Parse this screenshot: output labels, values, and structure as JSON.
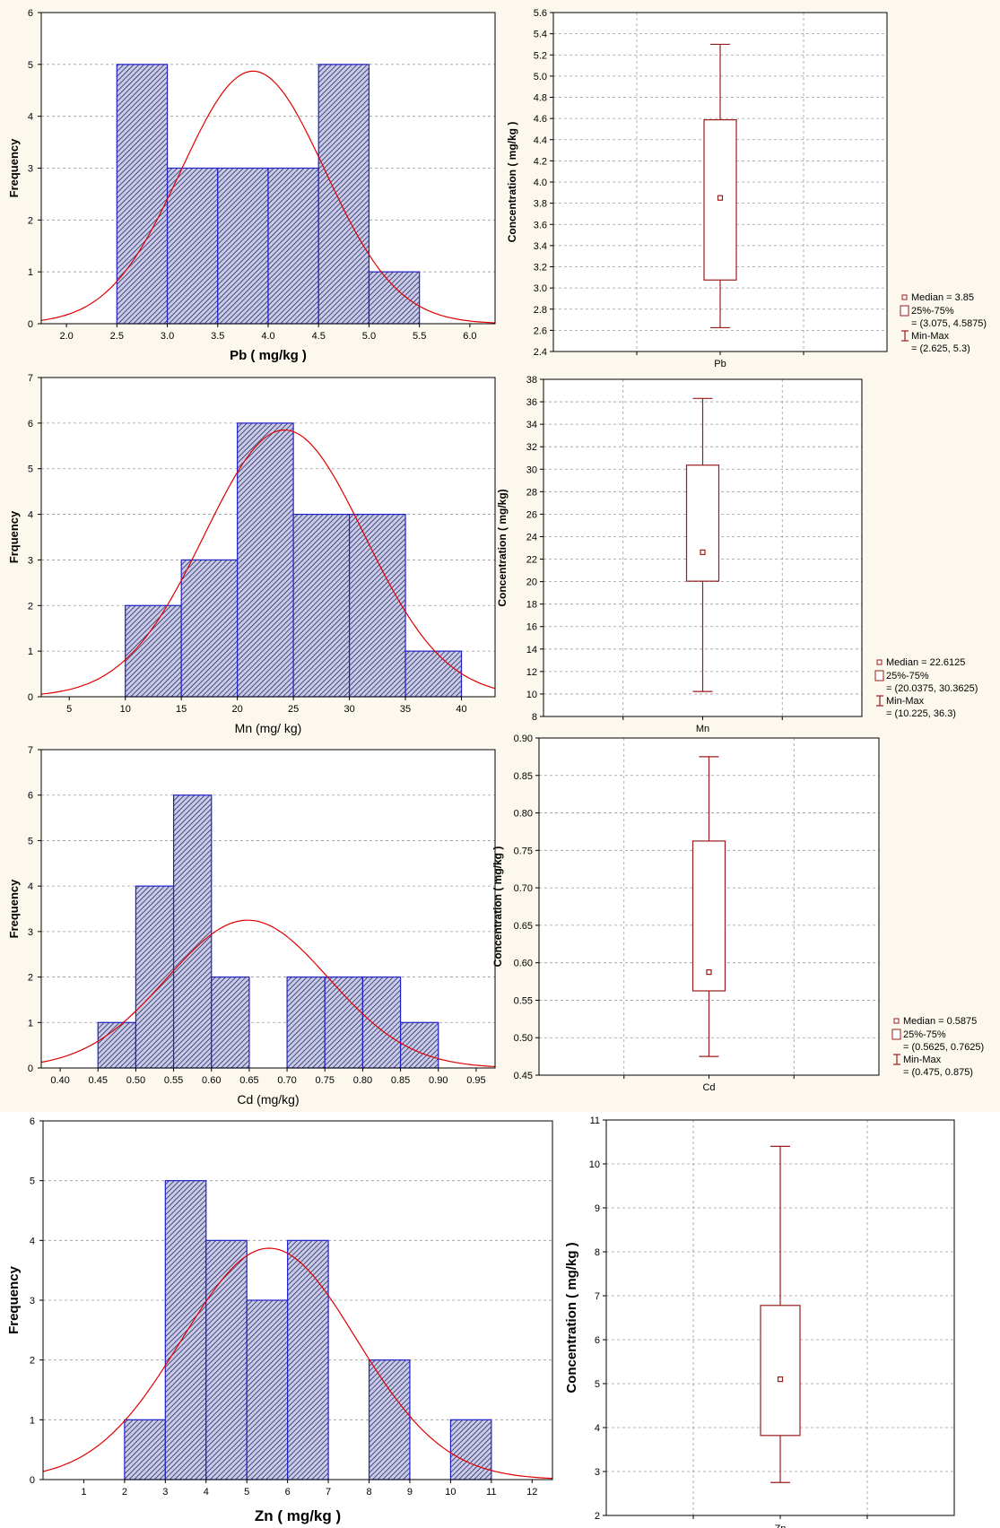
{
  "colors": {
    "bar_edge": "#2020c8",
    "curve": "#e00000",
    "box": "#9b1c1c",
    "background": "#fdf8ee"
  },
  "chart_data": [
    {
      "type": "bar",
      "subtype": "histogram",
      "xlabel": "Pb ( mg/kg )",
      "ylabel": "Frequency",
      "bins": [
        [
          2.5,
          3.0
        ],
        [
          3.0,
          3.5
        ],
        [
          3.5,
          4.0
        ],
        [
          4.0,
          4.5
        ],
        [
          4.5,
          5.0
        ],
        [
          5.0,
          5.5
        ]
      ],
      "values": [
        5,
        3,
        3,
        3,
        5,
        1
      ],
      "normal_fit": {
        "mean": 3.85,
        "peak": 4.87
      },
      "xlim": [
        1.75,
        6.25
      ],
      "ylim": [
        0,
        6
      ],
      "xticks": [
        "2.0",
        "2.5",
        "3.0",
        "3.5",
        "4.0",
        "4.5",
        "5.0",
        "5.5",
        "6.0"
      ],
      "yticks": [
        "0",
        "1",
        "2",
        "3",
        "4",
        "5",
        "6"
      ],
      "grid": true
    },
    {
      "type": "box",
      "category": "Pb",
      "ylabel": "Concentration ( mg/kg )",
      "median": 3.85,
      "q1": 3.075,
      "q3": 4.5875,
      "min": 2.625,
      "max": 5.3,
      "ylim": [
        2.4,
        5.6
      ],
      "yticks": [
        "2.4",
        "2.6",
        "2.8",
        "3.0",
        "3.2",
        "3.4",
        "3.6",
        "3.8",
        "4.0",
        "4.2",
        "4.4",
        "4.6",
        "4.8",
        "5.0",
        "5.2",
        "5.4",
        "5.6"
      ],
      "legend": {
        "median": "Median = 3.85",
        "box": "25%-75%",
        "box_values": "= (3.075, 4.5875)",
        "whisker": "Min-Max",
        "whisker_values": "= (2.625, 5.3)"
      },
      "grid": true
    },
    {
      "type": "bar",
      "subtype": "histogram",
      "xlabel": "Mn (mg/ kg)",
      "ylabel": "Frquency",
      "bins": [
        [
          10,
          15
        ],
        [
          15,
          20
        ],
        [
          20,
          25
        ],
        [
          25,
          30
        ],
        [
          30,
          35
        ],
        [
          35,
          40
        ]
      ],
      "values": [
        2,
        3,
        6,
        4,
        4,
        1
      ],
      "normal_fit": {
        "mean": 24.2,
        "peak": 5.85
      },
      "xlim": [
        2.5,
        43
      ],
      "ylim": [
        0,
        7
      ],
      "xticks": [
        "5",
        "10",
        "15",
        "20",
        "25",
        "30",
        "35",
        "40"
      ],
      "yticks": [
        "0",
        "1",
        "2",
        "3",
        "4",
        "5",
        "6",
        "7"
      ],
      "grid": true
    },
    {
      "type": "box",
      "category": "Mn",
      "ylabel": "Concentration ( mg/kg)",
      "median": 22.6125,
      "q1": 20.0375,
      "q3": 30.3625,
      "min": 10.225,
      "max": 36.3,
      "ylim": [
        8,
        38
      ],
      "yticks": [
        "8",
        "10",
        "12",
        "14",
        "16",
        "18",
        "20",
        "22",
        "24",
        "26",
        "28",
        "30",
        "32",
        "34",
        "36",
        "38"
      ],
      "legend": {
        "median": "Median = 22.6125",
        "box": "25%-75%",
        "box_values": "= (20.0375, 30.3625)",
        "whisker": "Min-Max",
        "whisker_values": "= (10.225, 36.3)"
      },
      "grid": true
    },
    {
      "type": "bar",
      "subtype": "histogram",
      "xlabel": "Cd (mg/kg)",
      "ylabel": "Frequency",
      "bins": [
        [
          0.45,
          0.5
        ],
        [
          0.5,
          0.55
        ],
        [
          0.55,
          0.6
        ],
        [
          0.6,
          0.65
        ],
        [
          0.7,
          0.75
        ],
        [
          0.75,
          0.8
        ],
        [
          0.8,
          0.85
        ],
        [
          0.85,
          0.9
        ]
      ],
      "values": [
        1,
        4,
        6,
        2,
        2,
        2,
        2,
        1
      ],
      "normal_fit": {
        "mean": 0.648,
        "peak": 3.25
      },
      "xlim": [
        0.375,
        0.975
      ],
      "ylim": [
        0,
        7
      ],
      "xticks": [
        "0.40",
        "0.45",
        "0.50",
        "0.55",
        "0.60",
        "0.65",
        "0.70",
        "0.75",
        "0.80",
        "0.85",
        "0.90",
        "0.95"
      ],
      "yticks": [
        "0",
        "1",
        "2",
        "3",
        "4",
        "5",
        "6",
        "7"
      ],
      "grid": true
    },
    {
      "type": "box",
      "category": "Cd",
      "ylabel": "Concentration ( mg/kg )",
      "median": 0.5875,
      "q1": 0.5625,
      "q3": 0.7625,
      "min": 0.475,
      "max": 0.875,
      "ylim": [
        0.45,
        0.9
      ],
      "yticks": [
        "0.45",
        "0.50",
        "0.55",
        "0.60",
        "0.65",
        "0.70",
        "0.75",
        "0.80",
        "0.85",
        "0.90"
      ],
      "legend": {
        "median": "Median = 0.5875",
        "box": "25%-75%",
        "box_values": "= (0.5625, 0.7625)",
        "whisker": "Min-Max",
        "whisker_values": "= (0.475, 0.875)"
      },
      "grid": true
    },
    {
      "type": "bar",
      "subtype": "histogram",
      "xlabel": "Zn ( mg/kg )",
      "ylabel": "Frequency",
      "bins": [
        [
          2,
          3
        ],
        [
          3,
          4
        ],
        [
          4,
          5
        ],
        [
          5,
          6
        ],
        [
          6,
          7
        ],
        [
          8,
          9
        ],
        [
          10,
          11
        ]
      ],
      "values": [
        1,
        5,
        4,
        3,
        4,
        2,
        1
      ],
      "normal_fit": {
        "mean": 5.55,
        "peak": 3.87
      },
      "xlim": [
        0,
        12.5
      ],
      "ylim": [
        0,
        6
      ],
      "xticks": [
        "1",
        "2",
        "3",
        "4",
        "5",
        "6",
        "7",
        "8",
        "9",
        "10",
        "11",
        "12"
      ],
      "yticks": [
        "0",
        "1",
        "2",
        "3",
        "4",
        "5",
        "6"
      ],
      "grid": true
    },
    {
      "type": "box",
      "category": "Zn",
      "ylabel": "Concentration ( mg/kg )",
      "median": 5.1,
      "q1": 3.82,
      "q3": 6.78,
      "min": 2.75,
      "max": 10.4,
      "ylim": [
        2,
        11
      ],
      "yticks": [
        "2",
        "3",
        "4",
        "5",
        "6",
        "7",
        "8",
        "9",
        "10",
        "11"
      ],
      "grid": true
    }
  ]
}
